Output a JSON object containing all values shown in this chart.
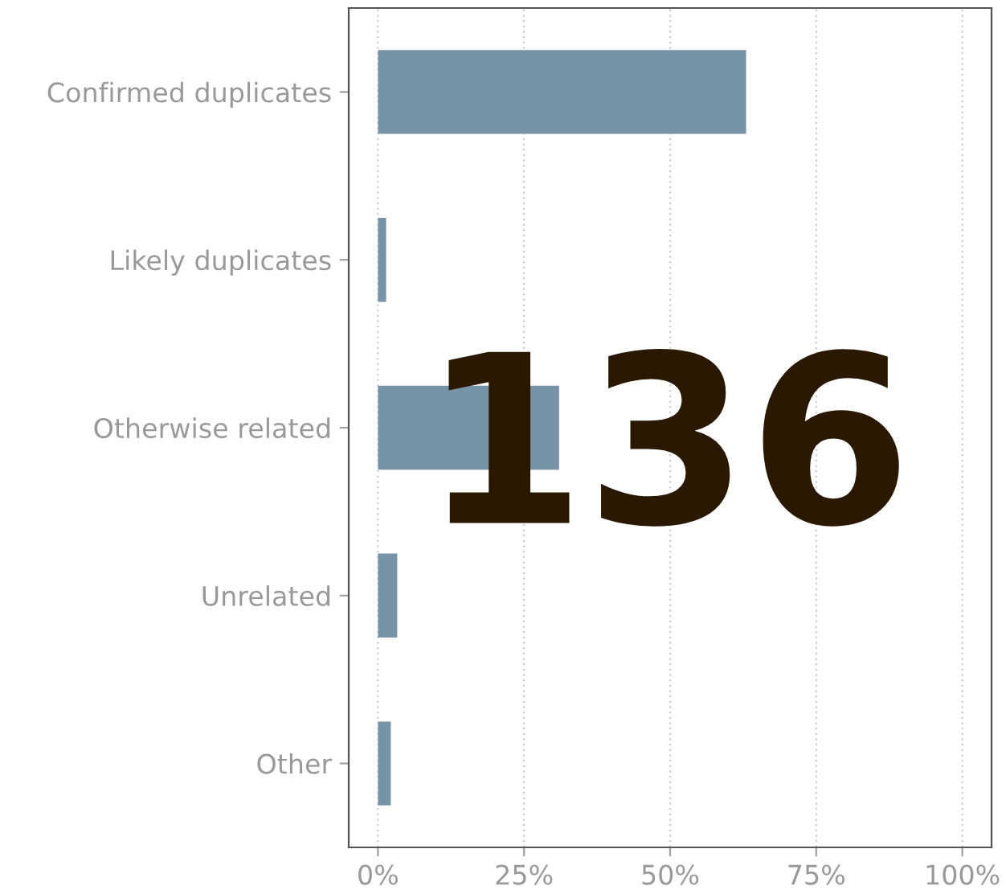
{
  "chart_data": {
    "type": "bar",
    "orientation": "horizontal",
    "categories": [
      "Confirmed duplicates",
      "Likely duplicates",
      "Otherwise related",
      "Unrelated",
      "Other"
    ],
    "values": [
      63,
      1.4,
      31,
      3.3,
      2.2
    ],
    "color": "#7793a8",
    "xlim": [
      -5,
      105
    ],
    "xticks": [
      {
        "value": 0,
        "label": "0%"
      },
      {
        "value": 25,
        "label": "25%"
      },
      {
        "value": 50,
        "label": "50%"
      },
      {
        "value": 75,
        "label": "75%"
      },
      {
        "value": 100,
        "label": "100%"
      }
    ],
    "grid": "x",
    "annotations": [
      "136"
    ]
  }
}
